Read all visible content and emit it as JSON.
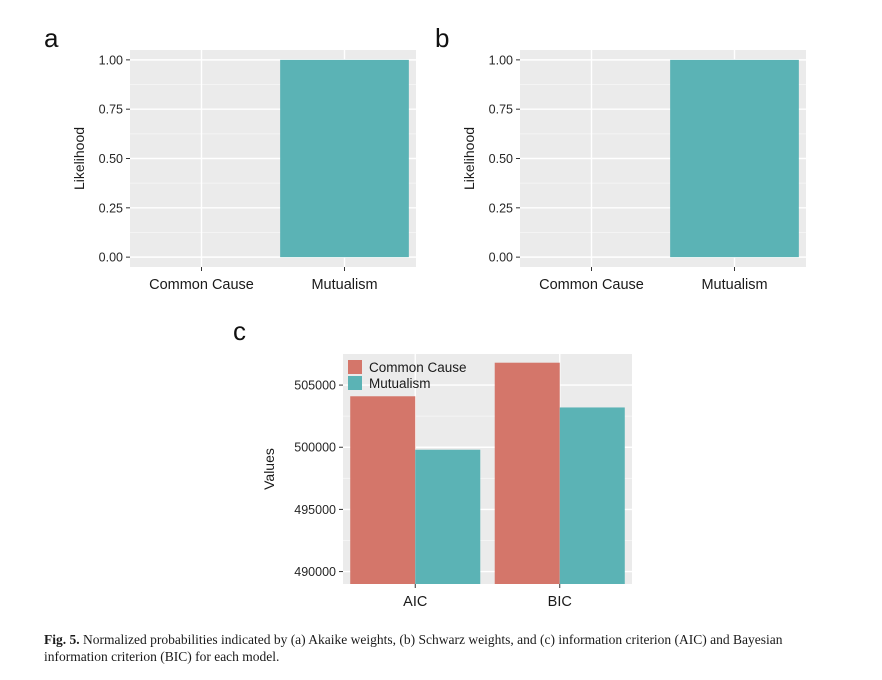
{
  "chart_data": [
    {
      "type": "bar",
      "panel_label": "a",
      "categories": [
        "Common Cause",
        "Mutualism"
      ],
      "values": [
        0.0,
        1.0
      ],
      "ylabel": "Likelihood",
      "xlabel": "",
      "ylim": [
        0,
        1
      ],
      "yticks": [
        "0.00",
        "0.25",
        "0.50",
        "0.75",
        "1.00"
      ],
      "color": "#5BB3B5",
      "grid": true
    },
    {
      "type": "bar",
      "panel_label": "b",
      "categories": [
        "Common Cause",
        "Mutualism"
      ],
      "values": [
        0.0,
        1.0
      ],
      "ylabel": "Likelihood",
      "xlabel": "",
      "ylim": [
        0,
        1
      ],
      "yticks": [
        "0.00",
        "0.25",
        "0.50",
        "0.75",
        "1.00"
      ],
      "color": "#5BB3B5",
      "grid": true
    },
    {
      "type": "bar",
      "panel_label": "c",
      "categories": [
        "AIC",
        "BIC"
      ],
      "series": [
        {
          "name": "Common Cause",
          "values": [
            504100,
            506800
          ],
          "color": "#D4766A"
        },
        {
          "name": "Mutualism",
          "values": [
            499800,
            503200
          ],
          "color": "#5BB3B5"
        }
      ],
      "ylabel": "Values",
      "xlabel": "",
      "ylim": [
        489000,
        507500
      ],
      "yticks": [
        "490000",
        "495000",
        "500000",
        "505000"
      ],
      "legend_position": "top-left",
      "grid": true
    }
  ],
  "caption": {
    "label": "Fig. 5.",
    "text": "Normalized probabilities indicated by (a) Akaike weights, (b) Schwarz weights, and (c) information criterion (AIC) and Bayesian information criterion (BIC) for each model."
  }
}
